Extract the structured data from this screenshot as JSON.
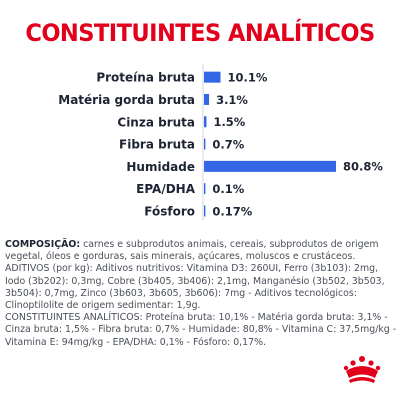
{
  "title": "CONSTITUINTES ANALÍTICOS",
  "chart_data": {
    "type": "bar",
    "orientation": "horizontal",
    "categories": [
      "Proteína bruta",
      "Matéria gorda bruta",
      "Cinza bruta",
      "Fibra bruta",
      "Humidade",
      "EPA/DHA",
      "Fósforo"
    ],
    "values": [
      10.1,
      3.1,
      1.5,
      0.7,
      80.8,
      0.1,
      0.17
    ],
    "value_labels": [
      "10.1%",
      "3.1%",
      "1.5%",
      "0.7%",
      "80.8%",
      "0.1%",
      "0.17%"
    ],
    "xlim": [
      0,
      80.8
    ],
    "bar_color": "#3466E6",
    "grid": false,
    "legend": "none"
  },
  "composition": {
    "label": "COMPOSIÇÃO:",
    "body": " carnes e subprodutos animais, cereais, subprodutos de origem vegetal, óleos e gorduras, sais minerais, açúcares, moluscos e crustáceos.",
    "lines": [
      "ADITIVOS (por kg): Aditivos nutritivos: Vitamina D3: 260UI, Ferro (3b103): 2mg, Iodo (3b202): 0,3mg, Cobre (3b405, 3b406): 2,1mg, Manganésio (3b502, 3b503, 3b504): 0,7mg, Zinco (3b603, 3b605, 3b606): 7mg - Aditivos tecnológicos: Clinoptilolite de origem sedimentar: 1,9g.",
      "CONSTITUINTES ANALÍTICOS: Proteína bruta: 10,1% - Matéria gorda bruta: 3,1% - Cinza bruta: 1,5% - Fibra bruta: 0,7% - Humidade: 80,8% - Vitamina C: 37,5mg/kg - Vitamina E: 94mg/kg - EPA/DHA: 0,1% - Fósforo: 0,17%."
    ]
  },
  "brand": {
    "logo_icon": "royal-canin-crown-icon",
    "color": "#E2001A"
  }
}
